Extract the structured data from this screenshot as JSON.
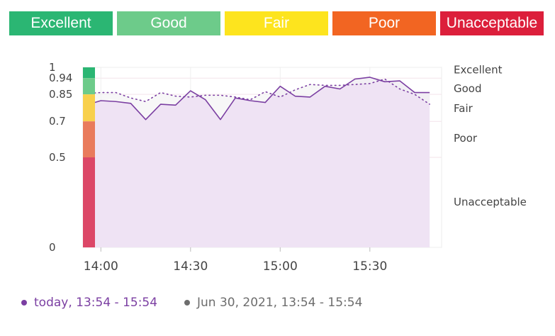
{
  "bands": [
    {
      "label": "Excellent",
      "color": "#2bb673"
    },
    {
      "label": "Good",
      "color": "#6dcb8a"
    },
    {
      "label": "Fair",
      "color": "#fde41e"
    },
    {
      "label": "Poor",
      "color": "#f26522"
    },
    {
      "label": "Unacceptable",
      "color": "#dc1f3b"
    }
  ],
  "legend": {
    "today": {
      "label": "today, 13:54 - 15:54",
      "color": "#7b3fa2"
    },
    "previous": {
      "label": "Jun 30, 2021, 13:54 - 15:54",
      "color": "#6d6d6d"
    }
  },
  "chart_data": {
    "type": "area",
    "y_ticks": [
      "1",
      "0.94",
      "0.85",
      "0.7",
      "0.5",
      "0"
    ],
    "x_ticks": [
      "14:00",
      "14:30",
      "15:00",
      "15:30"
    ],
    "ylim": [
      0,
      1
    ],
    "xlim": [
      "13:54",
      "15:54"
    ],
    "score_zones": [
      {
        "label": "Excellent",
        "from": 0.94,
        "to": 1.0,
        "color": "#2bb673"
      },
      {
        "label": "Good",
        "from": 0.85,
        "to": 0.94,
        "color": "#6dcb8a"
      },
      {
        "label": "Fair",
        "from": 0.7,
        "to": 0.85,
        "color": "#f8d04c"
      },
      {
        "label": "Poor",
        "from": 0.5,
        "to": 0.7,
        "color": "#e97b5c"
      },
      {
        "label": "Unacceptable",
        "from": 0.0,
        "to": 0.5,
        "color": "#dc4767"
      }
    ],
    "zone_labels": [
      {
        "label": "Excellent",
        "y": 0.99
      },
      {
        "label": "Good",
        "y": 0.885
      },
      {
        "label": "Fair",
        "y": 0.775
      },
      {
        "label": "Poor",
        "y": 0.61
      },
      {
        "label": "Unacceptable",
        "y": 0.255
      }
    ],
    "series": [
      {
        "key": "today",
        "color": "#7b3fa2",
        "style": "solid-area",
        "x": [
          "13:55",
          "14:00",
          "14:05",
          "14:10",
          "14:15",
          "14:20",
          "14:25",
          "14:30",
          "14:35",
          "14:40",
          "14:45",
          "14:50",
          "14:55",
          "15:00",
          "15:05",
          "15:10",
          "15:15",
          "15:20",
          "15:25",
          "15:30",
          "15:35",
          "15:40",
          "15:45",
          "15:50"
        ],
        "values": [
          0.79,
          0.815,
          0.81,
          0.8,
          0.71,
          0.795,
          0.79,
          0.87,
          0.82,
          0.71,
          0.83,
          0.815,
          0.805,
          0.895,
          0.84,
          0.835,
          0.895,
          0.88,
          0.935,
          0.945,
          0.92,
          0.925,
          0.86,
          0.86
        ]
      },
      {
        "key": "previous",
        "color": "#7b3fa2",
        "style": "dotted",
        "x": [
          "13:55",
          "14:00",
          "14:05",
          "14:10",
          "14:15",
          "14:20",
          "14:25",
          "14:30",
          "14:35",
          "14:40",
          "14:45",
          "14:50",
          "14:55",
          "15:00",
          "15:05",
          "15:10",
          "15:15",
          "15:20",
          "15:25",
          "15:30",
          "15:35",
          "15:40",
          "15:45",
          "15:50"
        ],
        "values": [
          0.855,
          0.86,
          0.86,
          0.83,
          0.81,
          0.86,
          0.84,
          0.835,
          0.845,
          0.845,
          0.835,
          0.82,
          0.865,
          0.835,
          0.875,
          0.905,
          0.9,
          0.9,
          0.905,
          0.91,
          0.935,
          0.88,
          0.85,
          0.795
        ]
      }
    ]
  }
}
